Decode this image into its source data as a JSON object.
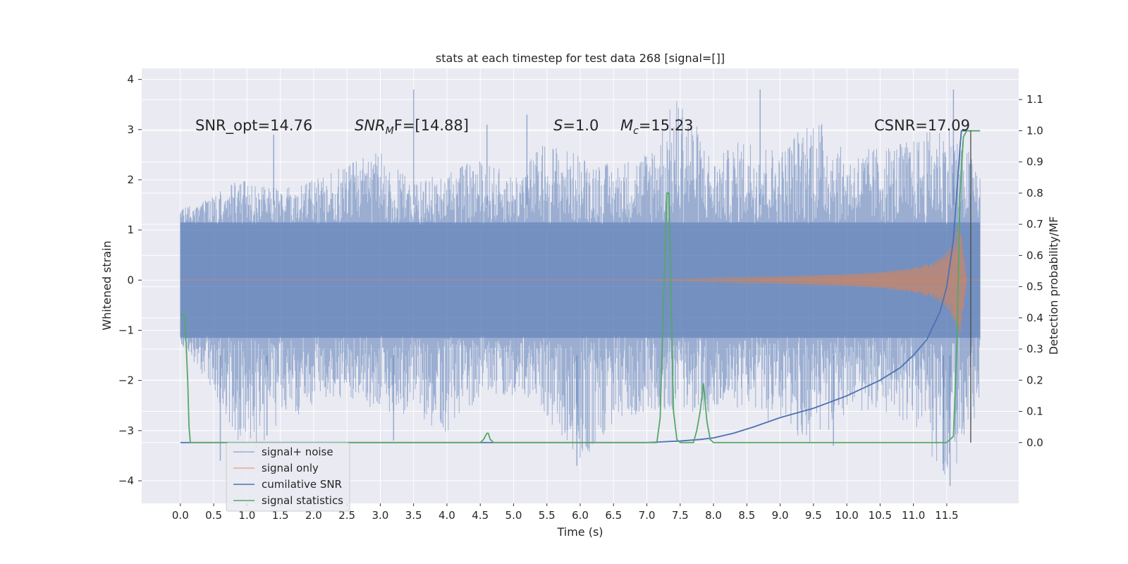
{
  "chart_data": {
    "type": "line",
    "title": "stats at each timestep for test data 268 [signal=[]]",
    "xlabel": "Time (s)",
    "ylabel": "Whitened strain",
    "ylabel_right": "Detection probability/MF",
    "xlim": [
      -0.58,
      12.58
    ],
    "ylim": [
      -4.45,
      4.22
    ],
    "ylim_right": [
      -0.195,
      1.2
    ],
    "x_ticks": [
      "0.0",
      "0.5",
      "1.0",
      "1.5",
      "2.0",
      "2.5",
      "3.0",
      "3.5",
      "4.0",
      "4.5",
      "5.0",
      "5.5",
      "6.0",
      "6.5",
      "7.0",
      "7.5",
      "8.0",
      "8.5",
      "9.0",
      "9.5",
      "10.0",
      "10.5",
      "11.0",
      "11.5"
    ],
    "y_ticks": [
      "4",
      "3",
      "2",
      "1",
      "0",
      "−1",
      "−2",
      "−3",
      "−4"
    ],
    "y_ticks_right": [
      "1.1",
      "1.0",
      "0.9",
      "0.8",
      "0.7",
      "0.6",
      "0.5",
      "0.4",
      "0.3",
      "0.2",
      "0.1",
      "0.0"
    ],
    "grid": true,
    "legend_position": "lower-left",
    "annotations": {
      "snr_opt": "SNR_opt=14.76",
      "snr_mf_main": "SNR",
      "snr_mf_sub": "M",
      "snr_mf_rest": "F=[14.88]",
      "s_main": "S",
      "s_rest": "=1.0",
      "mc_main": "M",
      "mc_sub": "c",
      "mc_rest": "=15.23",
      "csnr": "CSNR=17.09"
    },
    "series": [
      {
        "name": "signal+ noise",
        "color": "#4c72b0",
        "axis": "left",
        "x_range": [
          0.0,
          12.0
        ],
        "envelope_upper": [
          1.4,
          1.7,
          2.2,
          1.8,
          2.0,
          2.3,
          2.6,
          1.9,
          2.2,
          2.4,
          2.1,
          2.8,
          2.5,
          2.3,
          2.6,
          3.8,
          2.4,
          2.9,
          2.6,
          3.4,
          2.5,
          2.7,
          2.8,
          3.2,
          2.3
        ],
        "envelope_lower": [
          -1.3,
          -2.2,
          -3.6,
          -2.9,
          -2.5,
          -2.4,
          -2.6,
          -2.7,
          -3.1,
          -2.4,
          -2.3,
          -2.8,
          -3.7,
          -2.9,
          -2.6,
          -2.6,
          -2.7,
          -2.5,
          -3.0,
          -3.3,
          -2.7,
          -2.6,
          -2.9,
          -4.1,
          -2.6
        ],
        "spikes_up": [
          [
            1.4,
            2.9
          ],
          [
            3.5,
            3.8
          ],
          [
            4.6,
            3.1
          ],
          [
            5.2,
            3.3
          ],
          [
            8.7,
            3.8
          ],
          [
            11.6,
            3.8
          ]
        ],
        "spikes_down": [
          [
            0.6,
            -3.6
          ],
          [
            1.3,
            -3.1
          ],
          [
            3.2,
            -3.2
          ],
          [
            5.95,
            -3.7
          ],
          [
            9.8,
            -3.3
          ],
          [
            11.45,
            -3.8
          ],
          [
            11.55,
            -4.1
          ]
        ]
      },
      {
        "name": "signal only",
        "color": "#dd8452",
        "axis": "left",
        "x": [
          0.0,
          7.0,
          8.0,
          9.0,
          10.0,
          10.5,
          11.0,
          11.3,
          11.5,
          11.6,
          11.65,
          11.7,
          11.75,
          11.8
        ],
        "amplitude": [
          0.0,
          0.0,
          0.05,
          0.08,
          0.12,
          0.16,
          0.25,
          0.35,
          0.55,
          0.8,
          1.0,
          1.15,
          0.6,
          0.0
        ]
      },
      {
        "name": "cumilative SNR",
        "color": "#4c72b0",
        "axis": "right",
        "x": [
          0.0,
          7.0,
          7.5,
          7.8,
          8.0,
          8.3,
          8.6,
          9.0,
          9.5,
          10.0,
          10.5,
          10.8,
          11.0,
          11.2,
          11.4,
          11.5,
          11.6,
          11.65,
          11.7,
          11.72
        ],
        "values": [
          0.0,
          0.0,
          0.005,
          0.01,
          0.015,
          0.03,
          0.05,
          0.08,
          0.11,
          0.15,
          0.2,
          0.24,
          0.28,
          0.33,
          0.42,
          0.5,
          0.65,
          0.8,
          0.95,
          1.0
        ]
      },
      {
        "name": "signal statistics",
        "color": "#55a868",
        "axis": "right",
        "x": [
          0.0,
          0.05,
          0.07,
          0.09,
          0.11,
          0.13,
          0.15,
          4.5,
          4.55,
          4.6,
          4.62,
          4.65,
          4.7,
          7.15,
          7.2,
          7.25,
          7.3,
          7.33,
          7.36,
          7.4,
          7.45,
          7.5,
          7.6,
          7.7,
          7.75,
          7.8,
          7.85,
          7.9,
          7.95,
          8.0,
          11.5,
          11.6,
          11.65,
          11.7,
          11.75,
          11.8,
          11.85,
          12.0
        ],
        "values": [
          0.41,
          0.41,
          0.4,
          0.3,
          0.2,
          0.05,
          0.0,
          0.0,
          0.01,
          0.03,
          0.03,
          0.01,
          0.0,
          0.0,
          0.08,
          0.45,
          0.8,
          0.8,
          0.5,
          0.1,
          0.01,
          0.0,
          0.0,
          0.0,
          0.04,
          0.1,
          0.19,
          0.07,
          0.01,
          0.0,
          0.0,
          0.02,
          0.3,
          0.8,
          0.98,
          1.0,
          1.0,
          1.0
        ]
      }
    ],
    "marker_line": {
      "x": 11.86,
      "y_top": 1.0,
      "y_bottom": 0.0,
      "color": "#4a4a4a"
    }
  }
}
